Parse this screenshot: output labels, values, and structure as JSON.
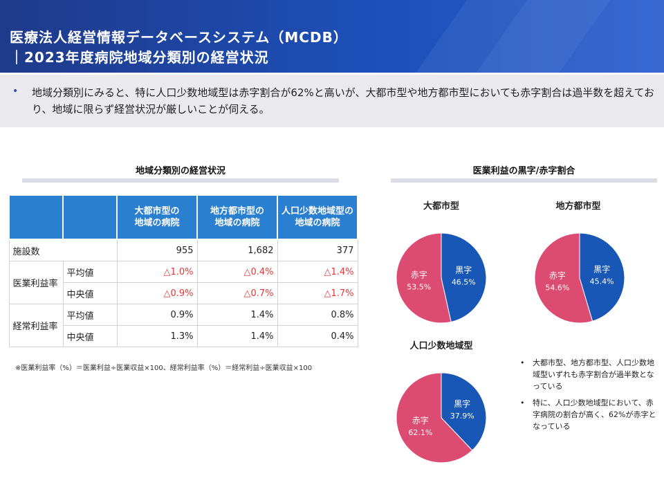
{
  "header": {
    "title_line1": "医療法人経営情報データベースシステム（MCDB）",
    "title_line2": "｜2023年度病院地域分類別の経営状況"
  },
  "summary": {
    "bullet": "•",
    "text": "地域分類別にみると、特に人口少数地域型は赤字割合が62%と高いが、大都市型や地方都市型においても赤字割合は過半数を超えており、地域に限らず経営状況が厳しいことが伺える。"
  },
  "table": {
    "title": "地域分類別の経営状況",
    "columns": [
      "大都市型の\n地域の病院",
      "地方都市型の\n地域の病院",
      "人口少数地域型の\n地域の病院"
    ],
    "rows": {
      "facilities": {
        "label": "施設数",
        "values": [
          "955",
          "1,682",
          "377"
        ]
      },
      "medical_group": "医業利益率",
      "medical_avg": {
        "label": "平均値",
        "values": [
          "△1.0%",
          "△0.4%",
          "△1.4%"
        ]
      },
      "medical_median": {
        "label": "中央値",
        "values": [
          "△0.9%",
          "△0.7%",
          "△1.7%"
        ]
      },
      "ordinary_group": "経常利益率",
      "ordinary_avg": {
        "label": "平均値",
        "values": [
          "0.9%",
          "1.4%",
          "0.8%"
        ]
      },
      "ordinary_median": {
        "label": "中央値",
        "values": [
          "1.3%",
          "1.4%",
          "0.4%"
        ]
      }
    },
    "note": "※医業利益率（%）＝医業利益÷医業収益×100、経常利益率（%）＝経常利益÷医業収益×100"
  },
  "colors": {
    "surplus": "#1857b6",
    "deficit": "#dc4c72",
    "header_bg": "#1e3a8a",
    "table_header": "#2a7fd0",
    "negative_text": "#e23838"
  },
  "chart_data": {
    "type": "pie",
    "title": "医業利益の黒字/赤字割合",
    "charts": [
      {
        "name": "大都市型",
        "slices": [
          {
            "label": "黒字",
            "value": 46.5,
            "display": "46.5%"
          },
          {
            "label": "赤字",
            "value": 53.5,
            "display": "53.5%"
          }
        ]
      },
      {
        "name": "地方都市型",
        "slices": [
          {
            "label": "黒字",
            "value": 45.4,
            "display": "45.4%"
          },
          {
            "label": "赤字",
            "value": 54.6,
            "display": "54.6%"
          }
        ]
      },
      {
        "name": "人口少数地域型",
        "slices": [
          {
            "label": "黒字",
            "value": 37.9,
            "display": "37.9%"
          },
          {
            "label": "赤字",
            "value": 62.1,
            "display": "62.1%"
          }
        ]
      }
    ]
  },
  "notes": [
    "大都市型、地方都市型、人口少数地域型いずれも赤字割合が過半数となっている",
    "特に、人口少数地域型において、赤字病院の割合が高く、62%が赤字となっている"
  ]
}
